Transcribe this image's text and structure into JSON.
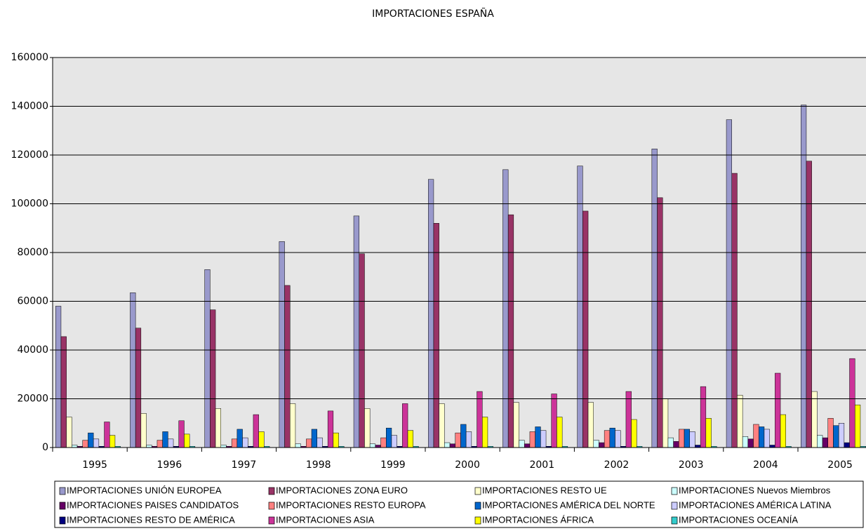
{
  "chart_data": {
    "type": "bar",
    "title": "IMPORTACIONES ESPAÑA",
    "categories": [
      "1995",
      "1996",
      "1997",
      "1998",
      "1999",
      "2000",
      "2001",
      "2002",
      "2003",
      "2004",
      "2005"
    ],
    "series": [
      {
        "name": "IMPORTACIONES UNIÓN EUROPEA",
        "color": "#9999cc",
        "values": [
          58000,
          63500,
          73000,
          84500,
          95000,
          110000,
          114000,
          115500,
          122500,
          134500,
          140500
        ]
      },
      {
        "name": "IMPORTACIONES ZONA EURO",
        "color": "#993366",
        "values": [
          45500,
          49000,
          56500,
          66500,
          79500,
          92000,
          95500,
          97000,
          102500,
          112500,
          117500
        ]
      },
      {
        "name": "IMPORTACIONES RESTO UE",
        "color": "#ffffcc",
        "values": [
          12500,
          14000,
          16000,
          18000,
          16000,
          18000,
          18500,
          18500,
          20000,
          21500,
          23000
        ]
      },
      {
        "name": "IMPORTACIONES Nuevos Miembros",
        "color": "#ccffff",
        "values": [
          1000,
          1000,
          1000,
          1500,
          1500,
          2000,
          3000,
          3000,
          4000,
          4500,
          5000
        ]
      },
      {
        "name": "IMPORTACIONES PAISES CANDIDATOS",
        "color": "#660066",
        "values": [
          500,
          500,
          500,
          500,
          1000,
          1500,
          1500,
          2000,
          2500,
          3500,
          4000
        ]
      },
      {
        "name": "IMPORTACIONES RESTO EUROPA",
        "color": "#ff8080",
        "values": [
          3000,
          3000,
          3500,
          3500,
          4000,
          6000,
          6500,
          7000,
          7500,
          9500,
          12000
        ]
      },
      {
        "name": "IMPORTACIONES AMÉRICA DEL NORTE",
        "color": "#0066cc",
        "values": [
          6000,
          6500,
          7500,
          7500,
          8000,
          9500,
          8500,
          8000,
          7500,
          8500,
          9000
        ]
      },
      {
        "name": "IMPORTACIONES AMÉRICA LATINA",
        "color": "#ccccff",
        "values": [
          3500,
          3500,
          4000,
          4000,
          5000,
          6500,
          7000,
          7000,
          6500,
          7500,
          10000
        ]
      },
      {
        "name": "IMPORTACIONES RESTO DE AMÉRICA",
        "color": "#000080",
        "values": [
          500,
          500,
          500,
          500,
          500,
          500,
          500,
          500,
          1000,
          1000,
          2000
        ]
      },
      {
        "name": "IMPORTACIONES ASIA",
        "color": "#cc3399",
        "values": [
          10500,
          11000,
          13500,
          15000,
          18000,
          23000,
          22000,
          23000,
          25000,
          30500,
          36500
        ]
      },
      {
        "name": "IMPORTACIONES ÁFRICA",
        "color": "#ffff00",
        "values": [
          5000,
          5500,
          6500,
          6000,
          7000,
          12500,
          12500,
          11500,
          12000,
          13500,
          17500
        ]
      },
      {
        "name": "IMPORTACIONES OCEANÍA",
        "color": "#33cccc",
        "values": [
          500,
          500,
          500,
          500,
          500,
          500,
          500,
          500,
          500,
          500,
          500
        ]
      }
    ],
    "ylim": [
      0,
      160000
    ],
    "yticks": [
      0,
      20000,
      40000,
      60000,
      80000,
      100000,
      120000,
      140000,
      160000
    ],
    "grid": true,
    "legend": "bottom"
  }
}
